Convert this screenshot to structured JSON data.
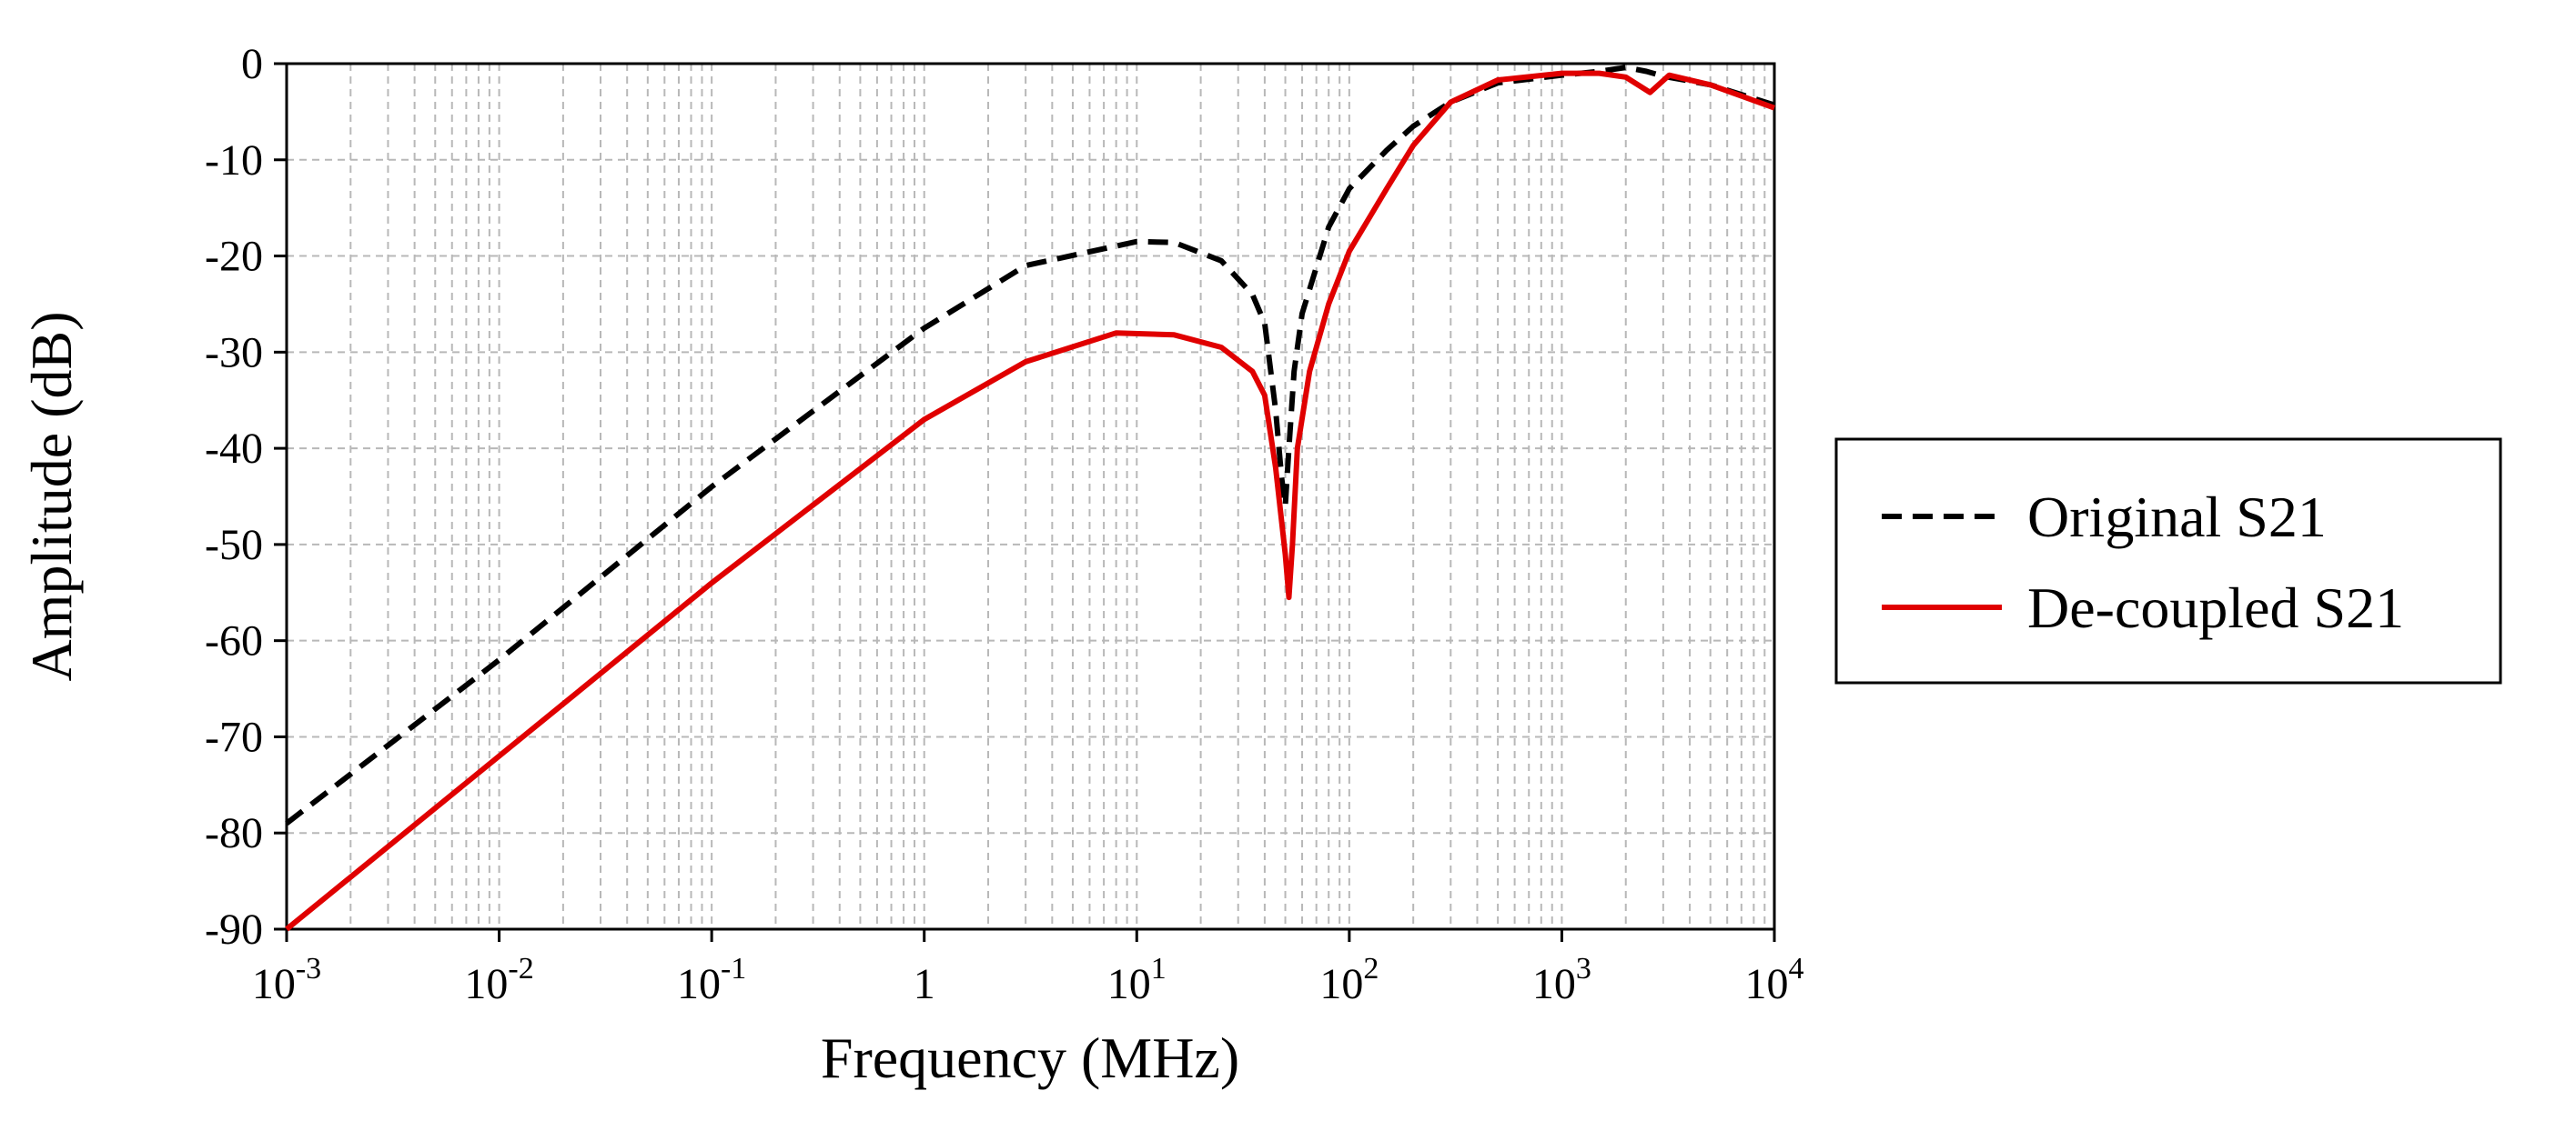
{
  "chart_data": {
    "type": "line",
    "title": "",
    "xlabel": "Frequency (MHz)",
    "ylabel": "Amplitude (dB)",
    "xscale": "log",
    "xlim": [
      0.001,
      10000
    ],
    "ylim": [
      -90,
      0
    ],
    "grid": true,
    "y_ticks": [
      0,
      -10,
      -20,
      -30,
      -40,
      -50,
      -60,
      -70,
      -80,
      -90
    ],
    "y_tick_labels": [
      "0",
      "-10",
      "-20",
      "-30",
      "-40",
      "-50",
      "-60",
      "-70",
      "-80",
      "-90"
    ],
    "x_ticks": [
      {
        "value": 0.001,
        "base": "10",
        "exp": "-3"
      },
      {
        "value": 0.01,
        "base": "10",
        "exp": "-2"
      },
      {
        "value": 0.1,
        "base": "10",
        "exp": "-1"
      },
      {
        "value": 1,
        "base": "1",
        "exp": ""
      },
      {
        "value": 10,
        "base": "10",
        "exp": "1"
      },
      {
        "value": 100,
        "base": "10",
        "exp": "2"
      },
      {
        "value": 1000,
        "base": "10",
        "exp": "3"
      },
      {
        "value": 10000,
        "base": "10",
        "exp": "4"
      }
    ],
    "legend_position": "right",
    "series": [
      {
        "name": "Original S21",
        "color": "#000000",
        "dash": "dashed",
        "points": [
          [
            0.001,
            -79
          ],
          [
            0.01,
            -62
          ],
          [
            0.1,
            -44
          ],
          [
            1,
            -27.5
          ],
          [
            3,
            -21
          ],
          [
            10,
            -18.5
          ],
          [
            15,
            -18.6
          ],
          [
            25,
            -20.5
          ],
          [
            35,
            -24
          ],
          [
            40,
            -27
          ],
          [
            45,
            -36
          ],
          [
            48,
            -43
          ],
          [
            50,
            -46
          ],
          [
            52,
            -40
          ],
          [
            55,
            -32
          ],
          [
            60,
            -26
          ],
          [
            80,
            -17
          ],
          [
            100,
            -13
          ],
          [
            150,
            -9
          ],
          [
            200,
            -6.5
          ],
          [
            300,
            -4
          ],
          [
            500,
            -2
          ],
          [
            1000,
            -1.2
          ],
          [
            1500,
            -0.8
          ],
          [
            2000,
            -0.4
          ],
          [
            2500,
            -0.8
          ],
          [
            3000,
            -1.3
          ],
          [
            5000,
            -2.2
          ],
          [
            10000,
            -4.3
          ]
        ]
      },
      {
        "name": "De-coupled S21",
        "color": "#e00000",
        "dash": "solid",
        "points": [
          [
            0.001,
            -90
          ],
          [
            0.01,
            -72
          ],
          [
            0.1,
            -54
          ],
          [
            1,
            -37
          ],
          [
            3,
            -31
          ],
          [
            8,
            -28
          ],
          [
            15,
            -28.2
          ],
          [
            25,
            -29.5
          ],
          [
            35,
            -32
          ],
          [
            40,
            -34.5
          ],
          [
            45,
            -42
          ],
          [
            50,
            -51
          ],
          [
            52,
            -55.5
          ],
          [
            54,
            -50
          ],
          [
            57,
            -40
          ],
          [
            65,
            -32
          ],
          [
            80,
            -25
          ],
          [
            100,
            -19.5
          ],
          [
            150,
            -13
          ],
          [
            200,
            -8.5
          ],
          [
            300,
            -4
          ],
          [
            500,
            -1.7
          ],
          [
            1000,
            -1
          ],
          [
            1500,
            -1
          ],
          [
            2000,
            -1.4
          ],
          [
            2600,
            -3
          ],
          [
            3200,
            -1.2
          ],
          [
            5000,
            -2.2
          ],
          [
            10000,
            -4.6
          ]
        ]
      }
    ]
  }
}
